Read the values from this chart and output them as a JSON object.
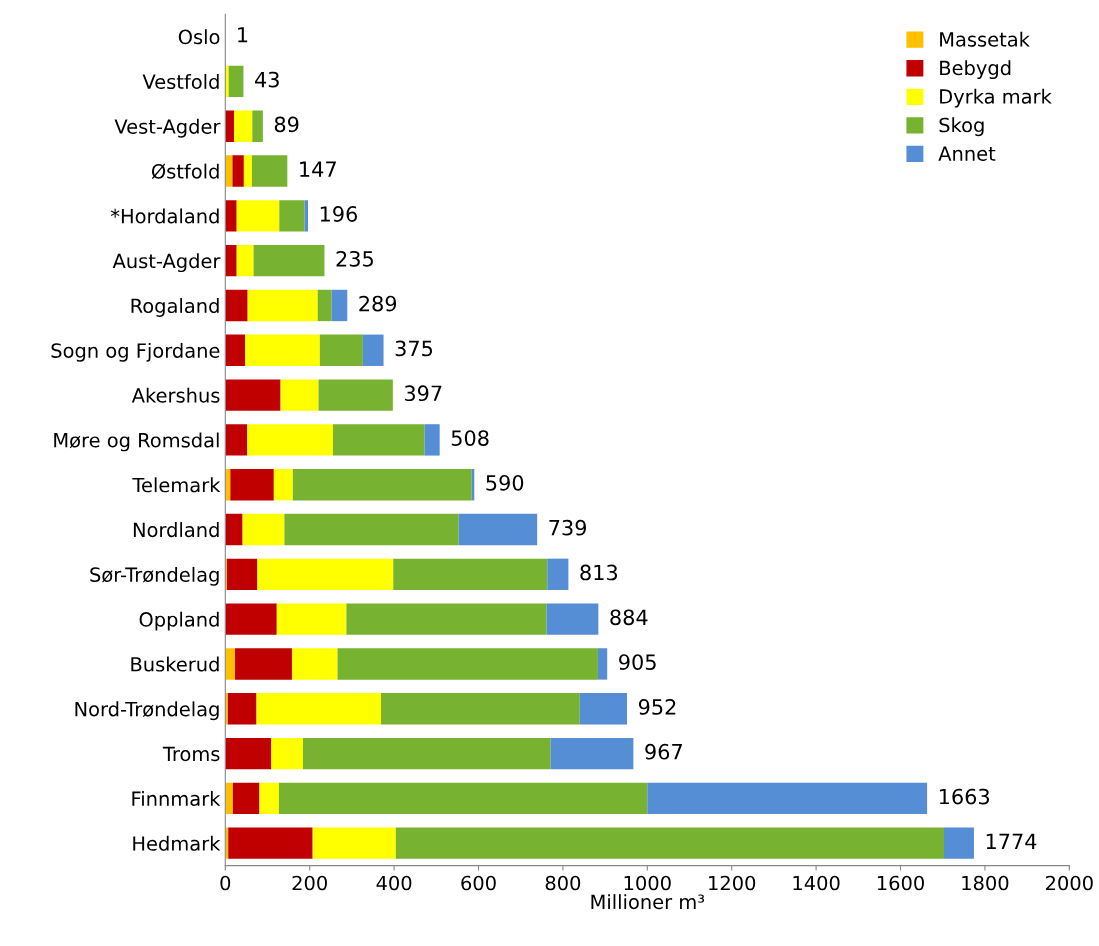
{
  "chart_data": {
    "type": "bar",
    "orientation": "horizontal",
    "stacked": true,
    "xlabel": "Millioner m³",
    "categories": [
      "Oslo",
      "Vestfold",
      "Vest-Agder",
      "Østfold",
      "*Hordaland",
      "Aust-Agder",
      "Rogaland",
      "Sogn og Fjordane",
      "Akershus",
      "Møre og Romsdal",
      "Telemark",
      "Nordland",
      "Sør-Trøndelag",
      "Oppland",
      "Buskerud",
      "Nord-Trøndelag",
      "Troms",
      "Finnmark",
      "Hedmark"
    ],
    "series": [
      {
        "name": "Massetak",
        "color": "#ffc000",
        "values": [
          0,
          0,
          0,
          17,
          0,
          0,
          0,
          0,
          0,
          null,
          12,
          0,
          4,
          null,
          23,
          6,
          0,
          18,
          7
        ]
      },
      {
        "name": "Bebygd",
        "color": "#c00000",
        "values": [
          null,
          null,
          21,
          27,
          27,
          27,
          53,
          47,
          131,
          52,
          103,
          41,
          72,
          122,
          135,
          68,
          109,
          63,
          200
        ]
      },
      {
        "name": "Dyrka mark",
        "color": "#ffff00",
        "values": [
          0,
          8,
          43,
          19,
          101,
          40,
          166,
          177,
          90,
          203,
          45,
          99,
          322,
          165,
          108,
          295,
          75,
          46,
          197
        ]
      },
      {
        "name": "Skog",
        "color": "#77b230",
        "values": [
          0,
          35,
          25,
          84,
          60,
          168,
          33,
          102,
          176,
          217,
          424,
          413,
          365,
          474,
          617,
          471,
          587,
          873,
          1299
        ]
      },
      {
        "name": "Annet",
        "color": "#558ed5",
        "values": [
          0,
          0,
          0,
          0,
          8,
          0,
          37,
          49,
          0,
          36,
          6,
          186,
          50,
          123,
          22,
          112,
          196,
          663,
          71
        ]
      }
    ],
    "totals": [
      "1",
      "43",
      "89",
      "147",
      "196",
      "235",
      "289",
      "375",
      "397",
      "508",
      "590",
      "739",
      "813",
      "884",
      "905",
      "952",
      "967",
      "1663",
      "1774"
    ],
    "xlim": [
      0,
      2000
    ],
    "xticks": [
      0,
      200,
      400,
      600,
      800,
      1000,
      1200,
      1400,
      1600,
      1800,
      2000
    ],
    "grid": false,
    "legend": "top right"
  }
}
